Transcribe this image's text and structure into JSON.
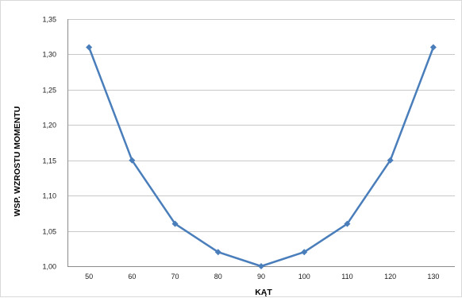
{
  "chart_data": {
    "type": "line",
    "title": "",
    "xlabel": "KĄT",
    "ylabel": "WSP. WZROSTU MOMENTU",
    "x": [
      50,
      60,
      70,
      80,
      90,
      100,
      110,
      120,
      130
    ],
    "x_tick_labels": [
      "50",
      "60",
      "70",
      "80",
      "90",
      "100",
      "110",
      "120",
      "130"
    ],
    "y_tick_labels": [
      "1,00",
      "1,05",
      "1,10",
      "1,15",
      "1,20",
      "1,25",
      "1,30",
      "1,35"
    ],
    "ylim": [
      1.0,
      1.35
    ],
    "y_ticks": [
      1.0,
      1.05,
      1.1,
      1.15,
      1.2,
      1.25,
      1.3,
      1.35
    ],
    "grid": true,
    "legend": "none",
    "series": [
      {
        "values": [
          1.31,
          1.15,
          1.06,
          1.02,
          1.0,
          1.02,
          1.06,
          1.15,
          1.31
        ],
        "color": "#4a7ebb",
        "marker": "diamond"
      }
    ]
  }
}
